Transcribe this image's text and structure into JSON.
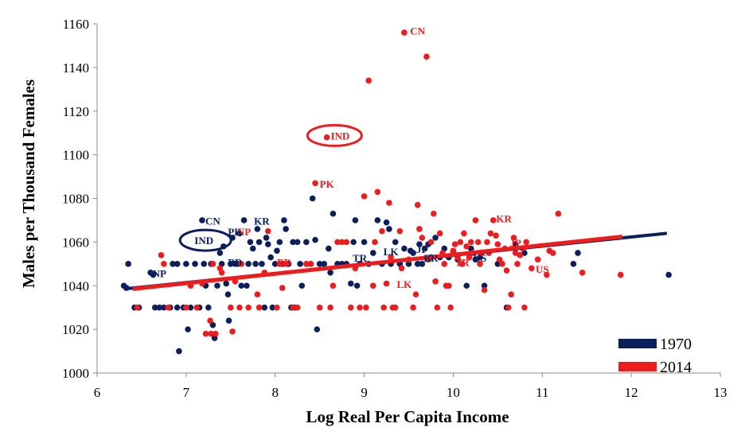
{
  "chart_data": {
    "type": "scatter",
    "xlabel": "Log Real Per Capita Income",
    "ylabel": "Males per Thousand Females",
    "xlim": [
      6,
      13
    ],
    "ylim": [
      1000,
      1160
    ],
    "xticks": [
      "6",
      "7",
      "8",
      "9",
      "10",
      "11",
      "12",
      "13"
    ],
    "yticks": [
      "1000",
      "1020",
      "1040",
      "1060",
      "1080",
      "1100",
      "1120",
      "1140",
      "1160"
    ],
    "grid": false,
    "legend_position": "bottom-right",
    "series": [
      {
        "name": "1970",
        "color": "#0a1f5c",
        "trend": [
          [
            6.3,
            1038.5
          ],
          [
            12.4,
            1064
          ]
        ],
        "points": [
          [
            6.3,
            1040
          ],
          [
            6.33,
            1039
          ],
          [
            6.35,
            1050
          ],
          [
            6.42,
            1030
          ],
          [
            6.47,
            1030
          ],
          [
            6.6,
            1046
          ],
          [
            6.63,
            1045
          ],
          [
            6.65,
            1030
          ],
          [
            6.7,
            1030
          ],
          [
            6.75,
            1030
          ],
          [
            6.82,
            1030
          ],
          [
            6.85,
            1050
          ],
          [
            6.9,
            1050
          ],
          [
            6.9,
            1030
          ],
          [
            6.92,
            1010
          ],
          [
            6.97,
            1030
          ],
          [
            7.0,
            1050
          ],
          [
            7.02,
            1020
          ],
          [
            7.05,
            1030
          ],
          [
            7.1,
            1050
          ],
          [
            7.15,
            1030
          ],
          [
            7.18,
            1070
          ],
          [
            7.2,
            1050
          ],
          [
            7.22,
            1040
          ],
          [
            7.25,
            1030
          ],
          [
            7.28,
            1050
          ],
          [
            7.3,
            1022
          ],
          [
            7.32,
            1016
          ],
          [
            7.35,
            1040
          ],
          [
            7.38,
            1055
          ],
          [
            7.4,
            1050
          ],
          [
            7.42,
            1058
          ],
          [
            7.45,
            1041
          ],
          [
            7.47,
            1036
          ],
          [
            7.48,
            1024
          ],
          [
            7.5,
            1050
          ],
          [
            7.52,
            1062
          ],
          [
            7.55,
            1050
          ],
          [
            7.58,
            1050
          ],
          [
            7.6,
            1064
          ],
          [
            7.62,
            1040
          ],
          [
            7.65,
            1070
          ],
          [
            7.68,
            1040
          ],
          [
            7.7,
            1050
          ],
          [
            7.72,
            1060
          ],
          [
            7.75,
            1057
          ],
          [
            7.78,
            1050
          ],
          [
            7.8,
            1066
          ],
          [
            7.82,
            1060
          ],
          [
            7.85,
            1050
          ],
          [
            7.88,
            1030
          ],
          [
            7.9,
            1062
          ],
          [
            7.92,
            1059
          ],
          [
            7.95,
            1053
          ],
          [
            7.97,
            1030
          ],
          [
            8.0,
            1050
          ],
          [
            8.02,
            1056
          ],
          [
            8.05,
            1060
          ],
          [
            8.08,
            1050
          ],
          [
            8.1,
            1070
          ],
          [
            8.12,
            1066
          ],
          [
            8.15,
            1050
          ],
          [
            8.18,
            1030
          ],
          [
            8.2,
            1060
          ],
          [
            8.22,
            1030
          ],
          [
            8.25,
            1060
          ],
          [
            8.28,
            1050
          ],
          [
            8.3,
            1040
          ],
          [
            8.35,
            1060
          ],
          [
            8.4,
            1050
          ],
          [
            8.42,
            1080
          ],
          [
            8.45,
            1061
          ],
          [
            8.47,
            1020
          ],
          [
            8.5,
            1050
          ],
          [
            8.55,
            1050
          ],
          [
            8.6,
            1057
          ],
          [
            8.62,
            1046
          ],
          [
            8.65,
            1073
          ],
          [
            8.7,
            1050
          ],
          [
            8.75,
            1050
          ],
          [
            8.8,
            1050
          ],
          [
            8.85,
            1041
          ],
          [
            8.88,
            1060
          ],
          [
            8.9,
            1070
          ],
          [
            8.92,
            1040
          ],
          [
            8.95,
            1050
          ],
          [
            9.0,
            1060
          ],
          [
            9.05,
            1050
          ],
          [
            9.1,
            1055
          ],
          [
            9.15,
            1070
          ],
          [
            9.2,
            1050
          ],
          [
            9.25,
            1069
          ],
          [
            9.28,
            1066
          ],
          [
            9.3,
            1050
          ],
          [
            9.35,
            1060
          ],
          [
            9.4,
            1050
          ],
          [
            9.45,
            1057
          ],
          [
            9.5,
            1050
          ],
          [
            9.52,
            1056
          ],
          [
            9.55,
            1055
          ],
          [
            9.6,
            1050
          ],
          [
            9.62,
            1059
          ],
          [
            9.65,
            1050
          ],
          [
            9.68,
            1057
          ],
          [
            9.72,
            1059
          ],
          [
            9.75,
            1053
          ],
          [
            9.8,
            1062
          ],
          [
            9.85,
            1053
          ],
          [
            9.9,
            1057
          ],
          [
            9.95,
            1053
          ],
          [
            10.0,
            1055
          ],
          [
            10.05,
            1052
          ],
          [
            10.1,
            1050
          ],
          [
            10.15,
            1040
          ],
          [
            10.2,
            1057
          ],
          [
            10.25,
            1052
          ],
          [
            10.3,
            1053
          ],
          [
            10.35,
            1040
          ],
          [
            10.5,
            1050
          ],
          [
            10.6,
            1030
          ],
          [
            10.7,
            1059
          ],
          [
            10.8,
            1055
          ],
          [
            11.35,
            1050
          ],
          [
            11.4,
            1055
          ],
          [
            12.42,
            1045
          ]
        ],
        "labels": [
          {
            "text": "CN",
            "x": 7.3,
            "y": 1068
          },
          {
            "text": "KR",
            "x": 7.85,
            "y": 1068
          },
          {
            "text": "PK",
            "x": 7.55,
            "y": 1063
          },
          {
            "text": "IND",
            "x": 7.2,
            "y": 1059
          },
          {
            "text": "BD",
            "x": 7.55,
            "y": 1049
          },
          {
            "text": "NP",
            "x": 6.7,
            "y": 1044
          },
          {
            "text": "TR",
            "x": 8.95,
            "y": 1051
          },
          {
            "text": "LK",
            "x": 9.3,
            "y": 1054
          },
          {
            "text": "JP",
            "x": 9.65,
            "y": 1055
          },
          {
            "text": "BR",
            "x": 9.75,
            "y": 1051
          },
          {
            "text": "US",
            "x": 10.3,
            "y": 1051
          }
        ]
      },
      {
        "name": "2014",
        "color": "#ee1c1c",
        "trend": [
          [
            6.4,
            1038.5
          ],
          [
            11.9,
            1062.5
          ]
        ],
        "points": [
          [
            6.45,
            1030
          ],
          [
            6.72,
            1054
          ],
          [
            6.75,
            1050
          ],
          [
            6.8,
            1030
          ],
          [
            7.0,
            1030
          ],
          [
            7.05,
            1040
          ],
          [
            7.12,
            1030
          ],
          [
            7.18,
            1041
          ],
          [
            7.22,
            1018
          ],
          [
            7.27,
            1024
          ],
          [
            7.28,
            1018
          ],
          [
            7.3,
            1050
          ],
          [
            7.33,
            1018
          ],
          [
            7.38,
            1048
          ],
          [
            7.4,
            1046
          ],
          [
            7.5,
            1030
          ],
          [
            7.52,
            1019
          ],
          [
            7.55,
            1042
          ],
          [
            7.6,
            1030
          ],
          [
            7.62,
            1050
          ],
          [
            7.7,
            1030
          ],
          [
            7.8,
            1036
          ],
          [
            7.82,
            1030
          ],
          [
            7.88,
            1046
          ],
          [
            7.92,
            1065
          ],
          [
            8.02,
            1030
          ],
          [
            8.05,
            1050
          ],
          [
            8.08,
            1039
          ],
          [
            8.12,
            1050
          ],
          [
            8.2,
            1030
          ],
          [
            8.25,
            1030
          ],
          [
            8.35,
            1050
          ],
          [
            8.4,
            1050
          ],
          [
            8.45,
            1087
          ],
          [
            8.5,
            1030
          ],
          [
            8.58,
            1108
          ],
          [
            8.62,
            1030
          ],
          [
            8.65,
            1040
          ],
          [
            8.7,
            1060
          ],
          [
            8.75,
            1060
          ],
          [
            8.8,
            1060
          ],
          [
            8.85,
            1030
          ],
          [
            8.9,
            1048
          ],
          [
            8.95,
            1030
          ],
          [
            9.0,
            1081
          ],
          [
            9.02,
            1030
          ],
          [
            9.05,
            1134
          ],
          [
            9.1,
            1040
          ],
          [
            9.12,
            1060
          ],
          [
            9.15,
            1083
          ],
          [
            9.2,
            1065
          ],
          [
            9.22,
            1030
          ],
          [
            9.25,
            1041
          ],
          [
            9.28,
            1078
          ],
          [
            9.3,
            1053
          ],
          [
            9.32,
            1030
          ],
          [
            9.35,
            1030
          ],
          [
            9.4,
            1065
          ],
          [
            9.42,
            1048
          ],
          [
            9.45,
            1156
          ],
          [
            9.5,
            1052
          ],
          [
            9.55,
            1030
          ],
          [
            9.58,
            1036
          ],
          [
            9.6,
            1077
          ],
          [
            9.62,
            1066
          ],
          [
            9.65,
            1062
          ],
          [
            9.7,
            1145
          ],
          [
            9.72,
            1052
          ],
          [
            9.75,
            1060
          ],
          [
            9.78,
            1073
          ],
          [
            9.8,
            1042
          ],
          [
            9.82,
            1030
          ],
          [
            9.85,
            1064
          ],
          [
            9.88,
            1055
          ],
          [
            9.9,
            1050
          ],
          [
            9.92,
            1040
          ],
          [
            9.95,
            1040
          ],
          [
            9.97,
            1030
          ],
          [
            10.0,
            1056
          ],
          [
            10.02,
            1059
          ],
          [
            10.05,
            1053
          ],
          [
            10.08,
            1060
          ],
          [
            10.1,
            1050
          ],
          [
            10.12,
            1064
          ],
          [
            10.15,
            1058
          ],
          [
            10.18,
            1053
          ],
          [
            10.2,
            1060
          ],
          [
            10.22,
            1055
          ],
          [
            10.25,
            1070
          ],
          [
            10.28,
            1060
          ],
          [
            10.3,
            1050
          ],
          [
            10.32,
            1055
          ],
          [
            10.35,
            1038
          ],
          [
            10.38,
            1060
          ],
          [
            10.4,
            1055
          ],
          [
            10.42,
            1064
          ],
          [
            10.45,
            1070
          ],
          [
            10.48,
            1063
          ],
          [
            10.5,
            1059
          ],
          [
            10.52,
            1052
          ],
          [
            10.55,
            1050
          ],
          [
            10.58,
            1057
          ],
          [
            10.6,
            1047
          ],
          [
            10.62,
            1030
          ],
          [
            10.65,
            1036
          ],
          [
            10.68,
            1062
          ],
          [
            10.7,
            1055
          ],
          [
            10.72,
            1050
          ],
          [
            10.75,
            1054
          ],
          [
            10.78,
            1057
          ],
          [
            10.8,
            1030
          ],
          [
            10.82,
            1060
          ],
          [
            10.88,
            1048
          ],
          [
            10.95,
            1052
          ],
          [
            11.05,
            1045
          ],
          [
            11.08,
            1056
          ],
          [
            11.12,
            1055
          ],
          [
            11.18,
            1073
          ],
          [
            11.45,
            1046
          ],
          [
            11.88,
            1045
          ]
        ],
        "labels": [
          {
            "text": "CN",
            "x": 9.6,
            "y": 1155
          },
          {
            "text": "IND",
            "x": 8.73,
            "y": 1107
          },
          {
            "text": "PK",
            "x": 8.58,
            "y": 1085
          },
          {
            "text": "KR",
            "x": 10.57,
            "y": 1069
          },
          {
            "text": "NP",
            "x": 7.65,
            "y": 1063
          },
          {
            "text": "BD",
            "x": 8.1,
            "y": 1049
          },
          {
            "text": "JP",
            "x": 10.7,
            "y": 1058
          },
          {
            "text": "TR",
            "x": 10.1,
            "y": 1049
          },
          {
            "text": "LK",
            "x": 9.45,
            "y": 1039
          },
          {
            "text": "US",
            "x": 11.0,
            "y": 1046
          }
        ]
      }
    ]
  }
}
